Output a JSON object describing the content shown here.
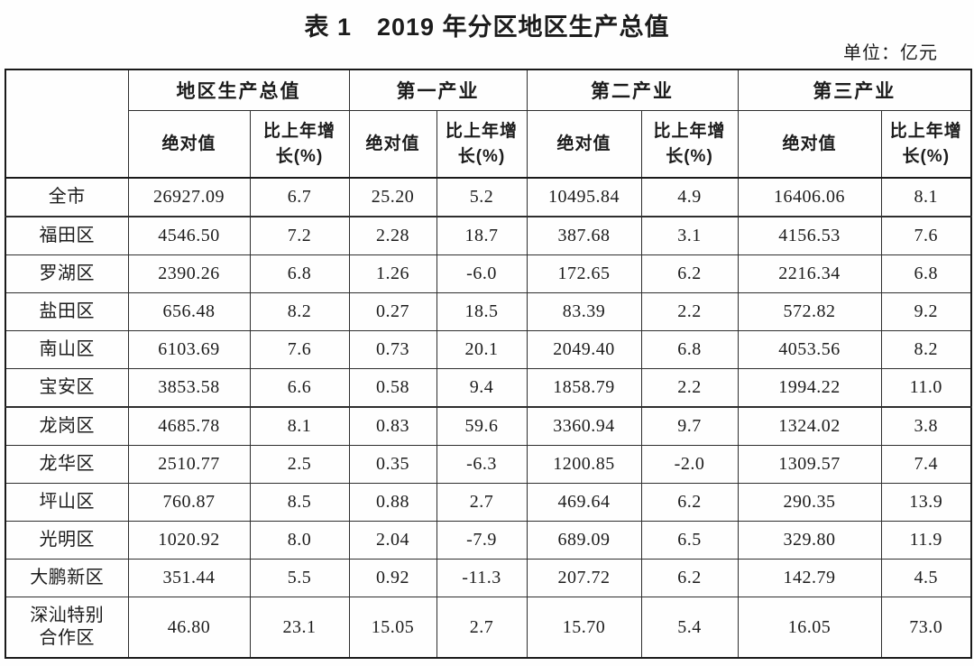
{
  "title": "表 1　2019 年分区地区生产总值",
  "unit_label": "单位：亿元",
  "table": {
    "groups": [
      {
        "label": "地区生产总值"
      },
      {
        "label": "第一产业"
      },
      {
        "label": "第二产业"
      },
      {
        "label": "第三产业"
      }
    ],
    "subheader": {
      "abs": "绝对值",
      "growth_line1": "比上年增",
      "growth_line2": "长(%)"
    },
    "rows": [
      {
        "region": "全市",
        "values": [
          "26927.09",
          "6.7",
          "25.20",
          "5.2",
          "10495.84",
          "4.9",
          "16406.06",
          "8.1"
        ]
      },
      {
        "region": "福田区",
        "values": [
          "4546.50",
          "7.2",
          "2.28",
          "18.7",
          "387.68",
          "3.1",
          "4156.53",
          "7.6"
        ]
      },
      {
        "region": "罗湖区",
        "values": [
          "2390.26",
          "6.8",
          "1.26",
          "-6.0",
          "172.65",
          "6.2",
          "2216.34",
          "6.8"
        ]
      },
      {
        "region": "盐田区",
        "values": [
          "656.48",
          "8.2",
          "0.27",
          "18.5",
          "83.39",
          "2.2",
          "572.82",
          "9.2"
        ]
      },
      {
        "region": "南山区",
        "values": [
          "6103.69",
          "7.6",
          "0.73",
          "20.1",
          "2049.40",
          "6.8",
          "4053.56",
          "8.2"
        ]
      },
      {
        "region": "宝安区",
        "values": [
          "3853.58",
          "6.6",
          "0.58",
          "9.4",
          "1858.79",
          "2.2",
          "1994.22",
          "11.0"
        ]
      },
      {
        "region": "龙岗区",
        "values": [
          "4685.78",
          "8.1",
          "0.83",
          "59.6",
          "3360.94",
          "9.7",
          "1324.02",
          "3.8"
        ]
      },
      {
        "region": "龙华区",
        "values": [
          "2510.77",
          "2.5",
          "0.35",
          "-6.3",
          "1200.85",
          "-2.0",
          "1309.57",
          "7.4"
        ]
      },
      {
        "region": "坪山区",
        "values": [
          "760.87",
          "8.5",
          "0.88",
          "2.7",
          "469.64",
          "6.2",
          "290.35",
          "13.9"
        ]
      },
      {
        "region": "光明区",
        "values": [
          "1020.92",
          "8.0",
          "2.04",
          "-7.9",
          "689.09",
          "6.5",
          "329.80",
          "11.9"
        ]
      },
      {
        "region": "大鹏新区",
        "values": [
          "351.44",
          "5.5",
          "0.92",
          "-11.3",
          "207.72",
          "6.2",
          "142.79",
          "4.5"
        ]
      },
      {
        "region": "深汕特别合作区",
        "values": [
          "46.80",
          "23.1",
          "15.05",
          "2.7",
          "15.70",
          "5.4",
          "16.05",
          "73.0"
        ]
      }
    ]
  }
}
